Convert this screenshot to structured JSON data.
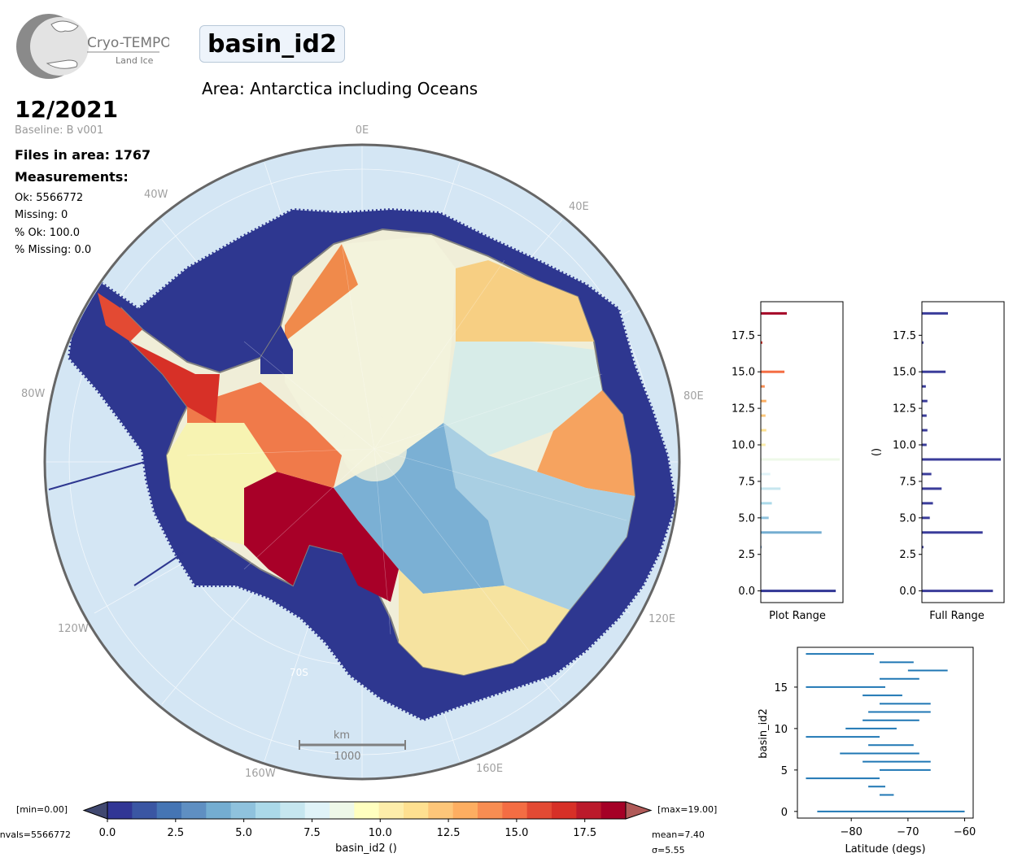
{
  "logo": {
    "line1": "Cryo-TEMPO",
    "line2": "Land Ice"
  },
  "title": "basin_id2",
  "area_title": "Area: Antarctica including Oceans",
  "date": "12/2021",
  "baseline": "Baseline: B v001",
  "files_in_area": "Files in area: 1767",
  "measurements_title": "Measurements:",
  "stats": {
    "ok": "Ok: 5566772",
    "missing": "Missing: 0",
    "pct_ok": "% Ok: 100.0",
    "pct_missing": "% Missing: 0.0"
  },
  "map": {
    "lon_labels": [
      "0E",
      "40E",
      "80E",
      "120E",
      "160E",
      "160W",
      "120W",
      "80W",
      "40W"
    ],
    "lat_label": "70S",
    "scale_bar": {
      "unit": "km",
      "value": "1000"
    }
  },
  "colorbar": {
    "min_label": "[min=0.00]",
    "max_label": "[max=19.00]",
    "nvals_label": "nvals=5566772",
    "mean_label": "mean=7.40",
    "sigma_label": "σ=5.55",
    "title": "basin_id2 ()",
    "ticks": [
      "0.0",
      "2.5",
      "5.0",
      "7.5",
      "10.0",
      "12.5",
      "15.0",
      "17.5"
    ],
    "tick_values": [
      0,
      2.5,
      5,
      7.5,
      10,
      12.5,
      15,
      17.5
    ],
    "range": [
      0,
      19
    ],
    "colors": [
      "#313695",
      "#3a56a3",
      "#4575b4",
      "#5f8fc2",
      "#74add1",
      "#8fc2dd",
      "#abd9e9",
      "#c6e6ef",
      "#e0f3f8",
      "#eef8e8",
      "#ffffbf",
      "#fdedaa",
      "#fee090",
      "#fdc679",
      "#fdae61",
      "#f88d52",
      "#f46d43",
      "#e34a33",
      "#d73027",
      "#bb1a2b",
      "#a50026"
    ],
    "cmap": "RdYlBu_r"
  },
  "hist_plot_range": {
    "xlabel": "Plot Range",
    "ylabel": "",
    "yticks": [
      "0.0",
      "2.5",
      "5.0",
      "7.5",
      "10.0",
      "12.5",
      "15.0",
      "17.5"
    ],
    "ylim": [
      -0.8,
      19.8
    ],
    "bins": [
      {
        "y": 0,
        "w": 0.95
      },
      {
        "y": 3,
        "w": 0.01
      },
      {
        "y": 4,
        "w": 0.77
      },
      {
        "y": 5,
        "w": 0.1
      },
      {
        "y": 6,
        "w": 0.14
      },
      {
        "y": 7,
        "w": 0.25
      },
      {
        "y": 8,
        "w": 0.12
      },
      {
        "y": 9,
        "w": 1.0
      },
      {
        "y": 10,
        "w": 0.06
      },
      {
        "y": 11,
        "w": 0.07
      },
      {
        "y": 12,
        "w": 0.06
      },
      {
        "y": 13,
        "w": 0.07
      },
      {
        "y": 14,
        "w": 0.05
      },
      {
        "y": 15,
        "w": 0.3
      },
      {
        "y": 17,
        "w": 0.02
      },
      {
        "y": 19,
        "w": 0.33
      }
    ]
  },
  "hist_full_range": {
    "xlabel": "Full Range",
    "ylabel": "()",
    "yticks": [
      "0.0",
      "2.5",
      "5.0",
      "7.5",
      "10.0",
      "12.5",
      "15.0",
      "17.5"
    ],
    "ylim": [
      -0.8,
      19.8
    ],
    "bar_color": "#3a3c9a",
    "bins": [
      {
        "y": 0,
        "w": 0.9
      },
      {
        "y": 3,
        "w": 0.02
      },
      {
        "y": 4,
        "w": 0.77
      },
      {
        "y": 5,
        "w": 0.1
      },
      {
        "y": 6,
        "w": 0.14
      },
      {
        "y": 7,
        "w": 0.25
      },
      {
        "y": 8,
        "w": 0.12
      },
      {
        "y": 9,
        "w": 1.0
      },
      {
        "y": 10,
        "w": 0.06
      },
      {
        "y": 11,
        "w": 0.07
      },
      {
        "y": 12,
        "w": 0.06
      },
      {
        "y": 13,
        "w": 0.07
      },
      {
        "y": 14,
        "w": 0.05
      },
      {
        "y": 15,
        "w": 0.3
      },
      {
        "y": 17,
        "w": 0.02
      },
      {
        "y": 19,
        "w": 0.33
      }
    ]
  },
  "chart_data": {
    "type": "range",
    "xlabel": "Latitude (degs)",
    "ylabel": "basin_id2",
    "xlim": [
      -89.5,
      -58.5
    ],
    "ylim": [
      -0.8,
      19.8
    ],
    "xticks": [
      -80,
      -70,
      -60
    ],
    "xtick_labels": [
      "−80",
      "−70",
      "−60"
    ],
    "yticks": [
      0,
      5,
      10,
      15
    ],
    "ytick_labels": [
      "0",
      "5",
      "10",
      "15"
    ],
    "color": "#1f77b4",
    "ranges": [
      {
        "y": 0,
        "lat_min": -86,
        "lat_max": -60
      },
      {
        "y": 2,
        "lat_min": -75,
        "lat_max": -72.5
      },
      {
        "y": 3,
        "lat_min": -77,
        "lat_max": -74
      },
      {
        "y": 4,
        "lat_min": -88,
        "lat_max": -75
      },
      {
        "y": 5,
        "lat_min": -75,
        "lat_max": -66
      },
      {
        "y": 6,
        "lat_min": -78,
        "lat_max": -66
      },
      {
        "y": 7,
        "lat_min": -82,
        "lat_max": -68
      },
      {
        "y": 8,
        "lat_min": -77,
        "lat_max": -69
      },
      {
        "y": 9,
        "lat_min": -88,
        "lat_max": -75
      },
      {
        "y": 10,
        "lat_min": -81,
        "lat_max": -72
      },
      {
        "y": 11,
        "lat_min": -78,
        "lat_max": -68
      },
      {
        "y": 12,
        "lat_min": -77,
        "lat_max": -66
      },
      {
        "y": 13,
        "lat_min": -75,
        "lat_max": -66
      },
      {
        "y": 14,
        "lat_min": -78,
        "lat_max": -71
      },
      {
        "y": 15,
        "lat_min": -88,
        "lat_max": -74
      },
      {
        "y": 16,
        "lat_min": -75,
        "lat_max": -68
      },
      {
        "y": 17,
        "lat_min": -70,
        "lat_max": -63
      },
      {
        "y": 18,
        "lat_min": -75,
        "lat_max": -69
      },
      {
        "y": 19,
        "lat_min": -88,
        "lat_max": -76
      }
    ]
  }
}
